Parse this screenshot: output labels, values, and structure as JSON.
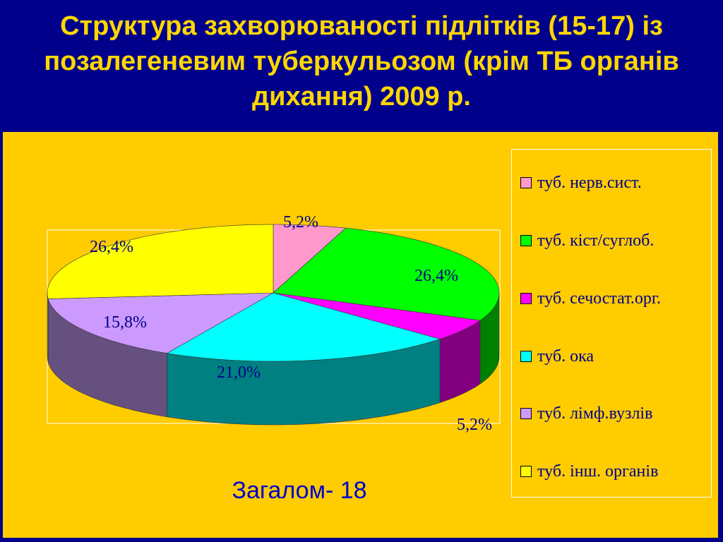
{
  "title": "Структура захворюваності підлітків (15-17) із позалегеневим туберкульозом (крім ТБ органів дихання) 2009 р.",
  "total_label": "Загалом- 18",
  "chart_data": {
    "type": "pie",
    "categories": [
      "туб. нерв.сист.",
      "туб. кіст/суглоб.",
      "туб. сечостат.орг.",
      "туб. ока",
      "туб. лімф.вузлів",
      "туб. інш. органів"
    ],
    "values": [
      5.2,
      26.4,
      5.2,
      21.0,
      15.8,
      26.4
    ],
    "value_labels": [
      "5,2%",
      "26,4%",
      "5,2%",
      "21,0%",
      "15,8%",
      "26,4%"
    ],
    "colors": [
      "#FF99CC",
      "#00FF00",
      "#FF00FF",
      "#00FFFF",
      "#CC99FF",
      "#FFFF00"
    ],
    "side_colors": [
      "#B36B8F",
      "#008000",
      "#800080",
      "#008080",
      "#665080",
      "#808000"
    ],
    "legend_position": "right",
    "three_d": true
  }
}
